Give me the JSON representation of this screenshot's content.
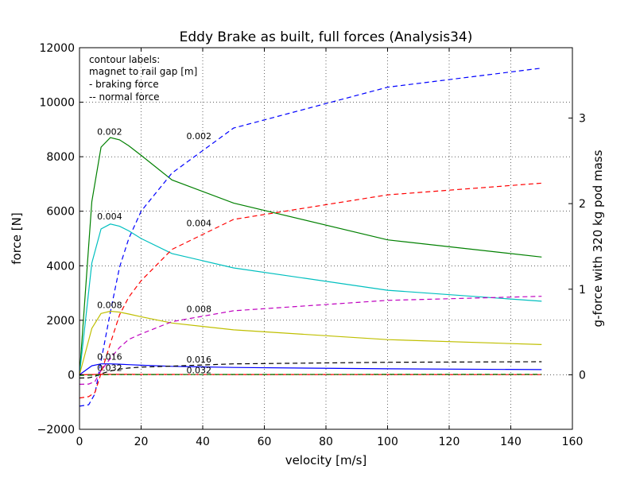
{
  "chart_data": {
    "type": "line",
    "title": "Eddy Brake as built, full forces (Analysis34)",
    "xlabel": "velocity [m/s]",
    "ylabel": "force [N]",
    "y2label": "g-force with 320 kg pod mass",
    "xlim": [
      0,
      160
    ],
    "ylim": [
      -2000,
      12000
    ],
    "y2lim": [
      -0.637,
      3.822
    ],
    "xticks": [
      0,
      20,
      40,
      60,
      80,
      100,
      120,
      140,
      160
    ],
    "yticks": [
      -2000,
      0,
      2000,
      4000,
      6000,
      8000,
      10000,
      12000
    ],
    "y2ticks": [
      0,
      1,
      2,
      3
    ],
    "grid": true,
    "note_lines": [
      "contour labels:",
      "magnet to rail gap [m]",
      "- braking force",
      "-- normal force"
    ],
    "series": [
      {
        "gap": "0.002",
        "kind": "braking",
        "style": "solid",
        "color": "#008000",
        "x": [
          0,
          4,
          7,
          10,
          13,
          16,
          20,
          30,
          50,
          100,
          150
        ],
        "y": [
          0,
          6350,
          8350,
          8700,
          8620,
          8400,
          8050,
          7150,
          6300,
          4950,
          4320
        ]
      },
      {
        "gap": "0.002",
        "kind": "normal",
        "style": "dashed",
        "color": "#0000ff",
        "x": [
          0,
          3,
          5,
          7,
          10,
          13,
          16,
          20,
          30,
          50,
          100,
          150
        ],
        "y": [
          -1150,
          -1100,
          -700,
          500,
          2300,
          3950,
          5000,
          6000,
          7400,
          9050,
          10550,
          11250
        ]
      },
      {
        "gap": "0.004",
        "kind": "braking",
        "style": "solid",
        "color": "#00bfbf",
        "x": [
          0,
          4,
          7,
          10,
          13,
          16,
          20,
          30,
          50,
          100,
          150
        ],
        "y": [
          0,
          4100,
          5350,
          5530,
          5450,
          5280,
          5000,
          4450,
          3920,
          3100,
          2700
        ]
      },
      {
        "gap": "0.004",
        "kind": "normal",
        "style": "dashed",
        "color": "#ff0000",
        "x": [
          0,
          3,
          5,
          7,
          10,
          13,
          16,
          20,
          30,
          50,
          100,
          150
        ],
        "y": [
          -850,
          -800,
          -650,
          50,
          1150,
          2200,
          2850,
          3450,
          4600,
          5700,
          6600,
          7030
        ]
      },
      {
        "gap": "0.008",
        "kind": "braking",
        "style": "solid",
        "color": "#bfbf00",
        "x": [
          0,
          4,
          7,
          10,
          13,
          16,
          20,
          30,
          50,
          100,
          150
        ],
        "y": [
          0,
          1700,
          2250,
          2330,
          2300,
          2230,
          2130,
          1900,
          1650,
          1290,
          1110
        ]
      },
      {
        "gap": "0.008",
        "kind": "normal",
        "style": "dashed",
        "color": "#bf00bf",
        "x": [
          0,
          3,
          5,
          7,
          10,
          13,
          16,
          20,
          30,
          50,
          100,
          150
        ],
        "y": [
          -350,
          -340,
          -250,
          150,
          600,
          1000,
          1300,
          1500,
          1950,
          2350,
          2730,
          2880
        ]
      },
      {
        "gap": "0.016",
        "kind": "braking",
        "style": "solid",
        "color": "#0000ff",
        "x": [
          0,
          4,
          7,
          10,
          13,
          16,
          20,
          30,
          50,
          100,
          150
        ],
        "y": [
          0,
          330,
          400,
          400,
          390,
          370,
          350,
          310,
          270,
          220,
          190
        ]
      },
      {
        "gap": "0.016",
        "kind": "normal",
        "style": "dashed",
        "color": "#000000",
        "x": [
          0,
          3,
          5,
          7,
          10,
          13,
          16,
          20,
          30,
          50,
          100,
          150
        ],
        "y": [
          -120,
          -110,
          -60,
          40,
          140,
          210,
          250,
          280,
          320,
          400,
          460,
          480
        ]
      },
      {
        "gap": "0.032",
        "kind": "braking",
        "style": "solid",
        "color": "#ff0000",
        "x": [
          0,
          4,
          7,
          10,
          13,
          16,
          20,
          30,
          50,
          100,
          150
        ],
        "y": [
          0,
          10,
          15,
          15,
          15,
          14,
          13,
          12,
          11,
          9,
          8
        ]
      },
      {
        "gap": "0.032",
        "kind": "normal",
        "style": "dashed",
        "color": "#008000",
        "x": [
          0,
          3,
          5,
          7,
          10,
          13,
          16,
          20,
          30,
          50,
          100,
          150
        ],
        "y": [
          -20,
          -15,
          -10,
          0,
          5,
          7,
          8,
          9,
          10,
          12,
          14,
          15
        ]
      }
    ],
    "annotations": [
      {
        "text": "0.002",
        "x": 5.7,
        "y": 8800
      },
      {
        "text": "0.004",
        "x": 5.7,
        "y": 5700
      },
      {
        "text": "0.008",
        "x": 5.7,
        "y": 2450
      },
      {
        "text": "0.016",
        "x": 5.7,
        "y": 550
      },
      {
        "text": "0.032",
        "x": 5.7,
        "y": 150
      },
      {
        "text": "0.002",
        "x": 34.7,
        "y": 8650
      },
      {
        "text": "0.004",
        "x": 34.7,
        "y": 5450
      },
      {
        "text": "0.008",
        "x": 34.7,
        "y": 2300
      },
      {
        "text": "0.016",
        "x": 34.7,
        "y": 450
      },
      {
        "text": "0.032",
        "x": 34.7,
        "y": 50
      }
    ]
  }
}
